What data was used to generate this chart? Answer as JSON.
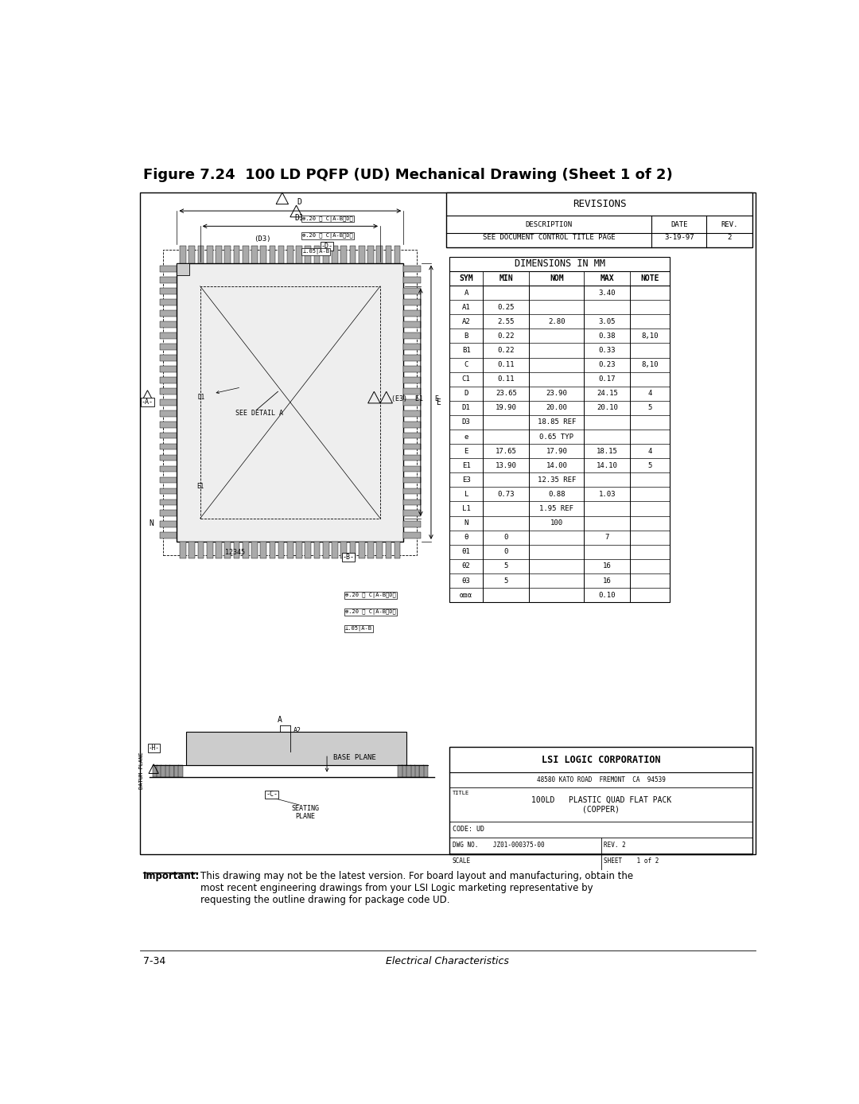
{
  "title": "Figure 7.24  100 LD PQFP (UD) Mechanical Drawing (Sheet 1 of 2)",
  "footer_left": "7-34",
  "footer_right": "Electrical Characteristics",
  "important_label": "Important:",
  "important_text": "This drawing may not be the latest version. For board layout and manufacturing, obtain the\nmost recent engineering drawings from your LSI Logic marketing representative by\nrequesting the outline drawing for package code UD.",
  "revisions_header": "REVISIONS",
  "rev_col1": "DESCRIPTION",
  "rev_col2": "DATE",
  "rev_col3": "REV.",
  "rev_row1_col1": "SEE DOCUMENT CONTROL TITLE PAGE",
  "rev_row1_col2": "3-19-97",
  "rev_row1_col3": "2",
  "dim_header": "DIMENSIONS IN MM",
  "dim_cols": [
    "SYM",
    "MIN",
    "NOM",
    "MAX",
    "NOTE"
  ],
  "dim_rows": [
    [
      "A",
      "",
      "",
      "3.40",
      ""
    ],
    [
      "A1",
      "0.25",
      "",
      "",
      ""
    ],
    [
      "A2",
      "2.55",
      "2.80",
      "3.05",
      ""
    ],
    [
      "B",
      "0.22",
      "",
      "0.38",
      "8,10"
    ],
    [
      "B1",
      "0.22",
      "",
      "0.33",
      ""
    ],
    [
      "C",
      "0.11",
      "",
      "0.23",
      "8,10"
    ],
    [
      "C1",
      "0.11",
      "",
      "0.17",
      ""
    ],
    [
      "D",
      "23.65",
      "23.90",
      "24.15",
      "4"
    ],
    [
      "D1",
      "19.90",
      "20.00",
      "20.10",
      "5"
    ],
    [
      "D3",
      "",
      "18.85 REF",
      "",
      ""
    ],
    [
      "e",
      "",
      "0.65 TYP",
      "",
      ""
    ],
    [
      "E",
      "17.65",
      "17.90",
      "18.15",
      "4"
    ],
    [
      "E1",
      "13.90",
      "14.00",
      "14.10",
      "5"
    ],
    [
      "E3",
      "",
      "12.35 REF",
      "",
      ""
    ],
    [
      "L",
      "0.73",
      "0.88",
      "1.03",
      ""
    ],
    [
      "L1",
      "",
      "1.95 REF",
      "",
      ""
    ],
    [
      "N",
      "",
      "100",
      "",
      ""
    ],
    [
      "θ",
      "0",
      "",
      "7",
      ""
    ],
    [
      "θ1",
      "0",
      "",
      "",
      ""
    ],
    [
      "θ2",
      "5",
      "",
      "16",
      ""
    ],
    [
      "θ3",
      "5",
      "",
      "16",
      ""
    ],
    [
      "ααα",
      "",
      "",
      "0.10",
      ""
    ]
  ],
  "lsi_company": "LSI LOGIC CORPORATION",
  "lsi_address": "48580 KATO ROAD  FREMONT  CA  94539",
  "lsi_title_label": "TITLE",
  "lsi_title": "100LD   PLASTIC QUAD FLAT PACK\n(COPPER)",
  "lsi_code": "CODE: UD",
  "lsi_dwg": "DWG NO.    JZ01-000375-00",
  "lsi_rev": "REV. 2",
  "lsi_scale": "SCALE",
  "lsi_sheet": "SHEET    1 of 2",
  "bg_color": "#ffffff",
  "line_color": "#000000"
}
